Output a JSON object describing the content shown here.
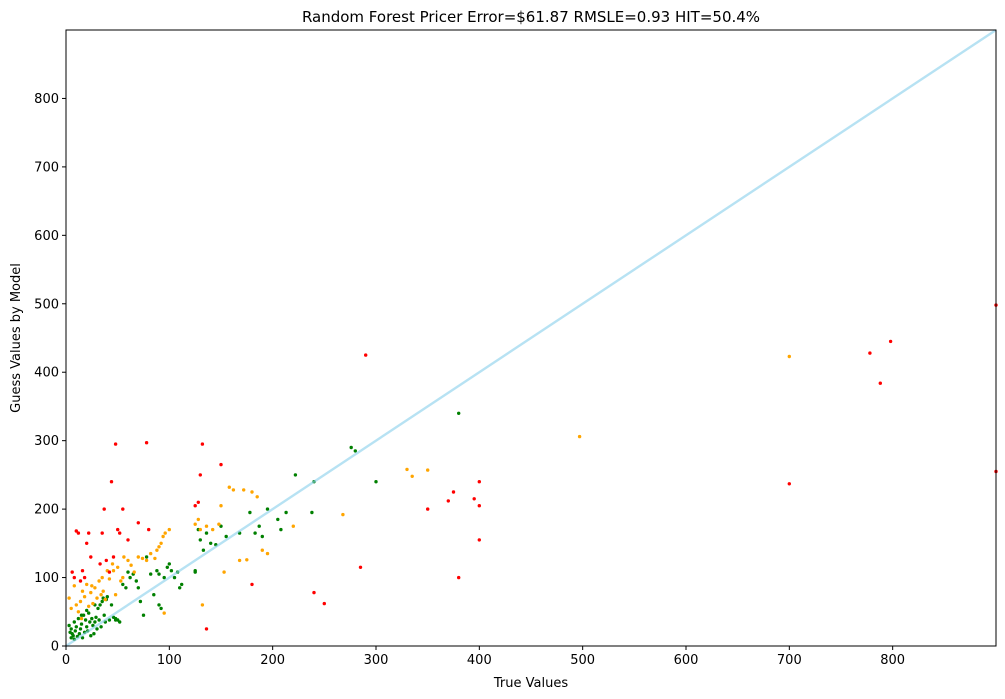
{
  "chart_data": {
    "type": "scatter",
    "title": "Random Forest Pricer Error=$61.87  RMSLE=0.93  HIT=50.4%",
    "xlabel": "True Values",
    "ylabel": "Guess Values by Model",
    "xlim": [
      0,
      900
    ],
    "ylim": [
      0,
      900
    ],
    "xticks": [
      "0",
      "100",
      "200",
      "300",
      "400",
      "500",
      "600",
      "700",
      "800"
    ],
    "yticks": [
      "0",
      "100",
      "200",
      "300",
      "400",
      "500",
      "600",
      "700",
      "800"
    ],
    "grid": false,
    "reference_line": {
      "from": [
        0,
        0
      ],
      "to": [
        900,
        900
      ],
      "color": "#87ceeb"
    },
    "colors": {
      "green": "#008000",
      "orange": "#ffa500",
      "red": "#ff0000"
    },
    "points": {
      "green": [
        [
          3,
          30
        ],
        [
          4,
          20
        ],
        [
          5,
          12
        ],
        [
          5,
          25
        ],
        [
          6,
          18
        ],
        [
          7,
          15
        ],
        [
          8,
          10
        ],
        [
          8,
          35
        ],
        [
          9,
          22
        ],
        [
          10,
          28
        ],
        [
          11,
          14
        ],
        [
          12,
          40
        ],
        [
          13,
          18
        ],
        [
          14,
          25
        ],
        [
          15,
          32
        ],
        [
          16,
          12
        ],
        [
          17,
          45
        ],
        [
          18,
          20
        ],
        [
          19,
          38
        ],
        [
          20,
          28
        ],
        [
          21,
          22
        ],
        [
          22,
          48
        ],
        [
          23,
          35
        ],
        [
          24,
          15
        ],
        [
          25,
          40
        ],
        [
          26,
          30
        ],
        [
          27,
          18
        ],
        [
          28,
          35
        ],
        [
          29,
          42
        ],
        [
          30,
          25
        ],
        [
          31,
          55
        ],
        [
          32,
          38
        ],
        [
          33,
          60
        ],
        [
          34,
          28
        ],
        [
          35,
          65
        ],
        [
          36,
          70
        ],
        [
          37,
          45
        ],
        [
          38,
          35
        ],
        [
          39,
          68
        ],
        [
          40,
          72
        ],
        [
          42,
          38
        ],
        [
          44,
          60
        ],
        [
          46,
          42
        ],
        [
          48,
          40
        ],
        [
          50,
          38
        ],
        [
          52,
          35
        ],
        [
          55,
          90
        ],
        [
          58,
          85
        ],
        [
          60,
          108
        ],
        [
          62,
          100
        ],
        [
          65,
          105
        ],
        [
          68,
          95
        ],
        [
          70,
          85
        ],
        [
          72,
          65
        ],
        [
          75,
          45
        ],
        [
          78,
          130
        ],
        [
          82,
          105
        ],
        [
          85,
          75
        ],
        [
          88,
          110
        ],
        [
          90,
          60
        ],
        [
          92,
          55
        ],
        [
          95,
          100
        ],
        [
          98,
          115
        ],
        [
          100,
          120
        ],
        [
          102,
          110
        ],
        [
          105,
          100
        ],
        [
          108,
          108
        ],
        [
          110,
          85
        ],
        [
          112,
          90
        ],
        [
          125,
          110
        ],
        [
          128,
          170
        ],
        [
          130,
          155
        ],
        [
          133,
          140
        ],
        [
          136,
          165
        ],
        [
          140,
          150
        ],
        [
          145,
          148
        ],
        [
          150,
          175
        ],
        [
          155,
          160
        ],
        [
          168,
          165
        ],
        [
          178,
          195
        ],
        [
          183,
          165
        ],
        [
          187,
          175
        ],
        [
          190,
          160
        ],
        [
          195,
          200
        ],
        [
          205,
          185
        ],
        [
          208,
          170
        ],
        [
          213,
          195
        ],
        [
          222,
          250
        ],
        [
          238,
          195
        ],
        [
          240,
          240
        ],
        [
          276,
          290
        ],
        [
          280,
          285
        ],
        [
          300,
          240
        ],
        [
          380,
          340
        ],
        [
          15,
          45
        ],
        [
          20,
          52
        ],
        [
          28,
          60
        ],
        [
          48,
          38
        ],
        [
          90,
          105
        ],
        [
          125,
          108
        ]
      ],
      "orange": [
        [
          3,
          70
        ],
        [
          5,
          55
        ],
        [
          8,
          88
        ],
        [
          10,
          60
        ],
        [
          12,
          50
        ],
        [
          14,
          65
        ],
        [
          16,
          80
        ],
        [
          18,
          72
        ],
        [
          20,
          90
        ],
        [
          22,
          58
        ],
        [
          24,
          78
        ],
        [
          26,
          62
        ],
        [
          28,
          85
        ],
        [
          30,
          70
        ],
        [
          32,
          95
        ],
        [
          34,
          75
        ],
        [
          36,
          80
        ],
        [
          38,
          68
        ],
        [
          40,
          110
        ],
        [
          42,
          98
        ],
        [
          45,
          120
        ],
        [
          48,
          75
        ],
        [
          50,
          115
        ],
        [
          53,
          95
        ],
        [
          56,
          130
        ],
        [
          60,
          125
        ],
        [
          63,
          118
        ],
        [
          66,
          108
        ],
        [
          70,
          130
        ],
        [
          74,
          128
        ],
        [
          78,
          125
        ],
        [
          82,
          135
        ],
        [
          86,
          128
        ],
        [
          88,
          140
        ],
        [
          90,
          145
        ],
        [
          92,
          150
        ],
        [
          94,
          160
        ],
        [
          96,
          165
        ],
        [
          100,
          170
        ],
        [
          95,
          48
        ],
        [
          125,
          178
        ],
        [
          128,
          185
        ],
        [
          130,
          170
        ],
        [
          132,
          60
        ],
        [
          136,
          175
        ],
        [
          142,
          170
        ],
        [
          148,
          178
        ],
        [
          150,
          205
        ],
        [
          153,
          108
        ],
        [
          158,
          232
        ],
        [
          162,
          228
        ],
        [
          168,
          125
        ],
        [
          172,
          228
        ],
        [
          175,
          126
        ],
        [
          180,
          225
        ],
        [
          185,
          218
        ],
        [
          190,
          140
        ],
        [
          195,
          135
        ],
        [
          220,
          175
        ],
        [
          268,
          192
        ],
        [
          330,
          258
        ],
        [
          335,
          248
        ],
        [
          350,
          257
        ],
        [
          497,
          306
        ],
        [
          700,
          423
        ],
        [
          15,
          40
        ],
        [
          25,
          88
        ],
        [
          35,
          100
        ],
        [
          46,
          110
        ],
        [
          55,
          100
        ]
      ],
      "red": [
        [
          6,
          108
        ],
        [
          8,
          100
        ],
        [
          10,
          168
        ],
        [
          12,
          165
        ],
        [
          14,
          95
        ],
        [
          16,
          110
        ],
        [
          18,
          100
        ],
        [
          20,
          150
        ],
        [
          22,
          165
        ],
        [
          24,
          130
        ],
        [
          33,
          120
        ],
        [
          35,
          165
        ],
        [
          37,
          200
        ],
        [
          39,
          125
        ],
        [
          42,
          108
        ],
        [
          44,
          240
        ],
        [
          46,
          130
        ],
        [
          48,
          295
        ],
        [
          50,
          170
        ],
        [
          52,
          165
        ],
        [
          55,
          200
        ],
        [
          60,
          155
        ],
        [
          70,
          180
        ],
        [
          78,
          297
        ],
        [
          80,
          170
        ],
        [
          125,
          205
        ],
        [
          128,
          210
        ],
        [
          130,
          250
        ],
        [
          132,
          295
        ],
        [
          136,
          25
        ],
        [
          150,
          265
        ],
        [
          180,
          90
        ],
        [
          240,
          78
        ],
        [
          250,
          62
        ],
        [
          285,
          115
        ],
        [
          290,
          425
        ],
        [
          350,
          200
        ],
        [
          370,
          212
        ],
        [
          375,
          225
        ],
        [
          380,
          100
        ],
        [
          395,
          215
        ],
        [
          400,
          240
        ],
        [
          400,
          205
        ],
        [
          400,
          155
        ],
        [
          700,
          237
        ],
        [
          778,
          428
        ],
        [
          788,
          384
        ],
        [
          798,
          445
        ],
        [
          900,
          498
        ],
        [
          900,
          255
        ]
      ]
    }
  }
}
